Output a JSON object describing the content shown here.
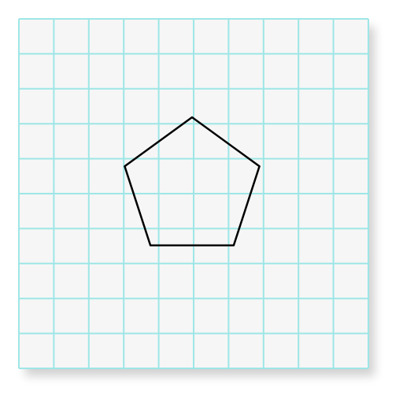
{
  "grid": {
    "columns": 10,
    "rows": 10,
    "line_color": "#9ee6e6",
    "background_color": "#f6f6f6"
  },
  "shape": {
    "type": "regular-pentagon",
    "sides": 5,
    "stroke_color": "#000000",
    "fill": "none"
  }
}
